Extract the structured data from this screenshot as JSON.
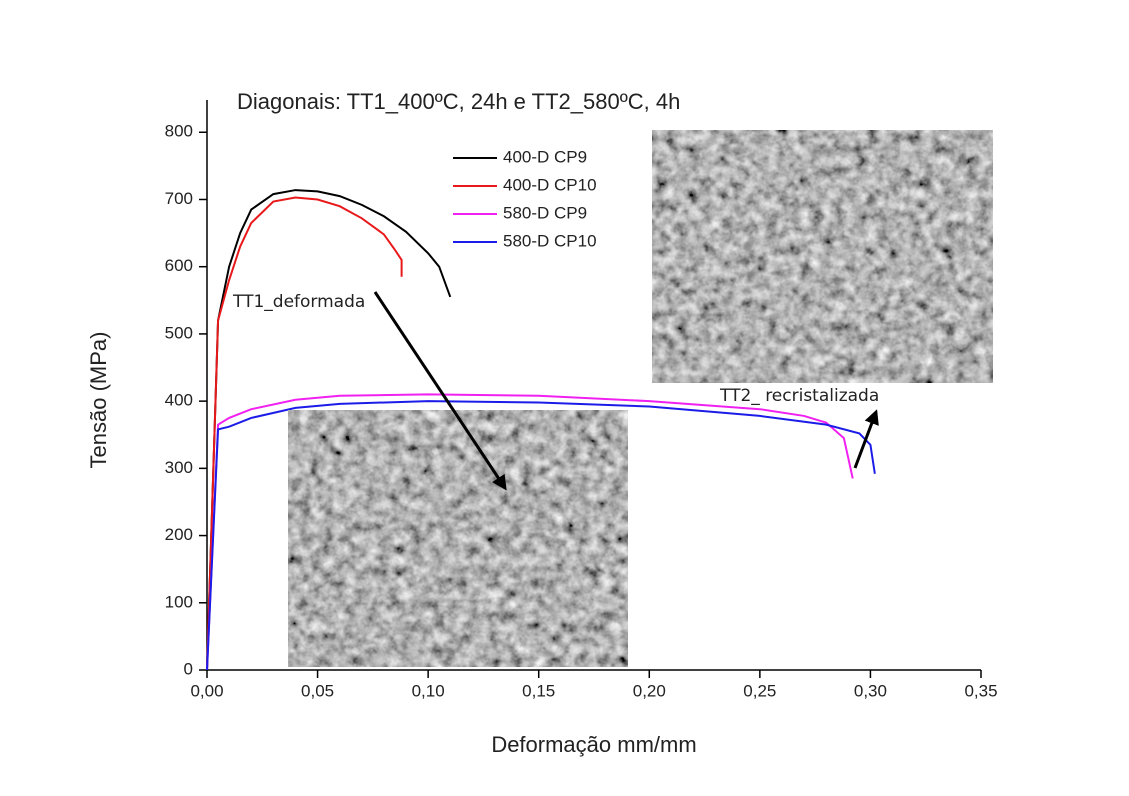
{
  "chart_data": {
    "type": "line",
    "title": "Diagonais: TT1_400ºC, 24h e TT2_580ºC, 4h",
    "xlabel": "Deformação mm/mm",
    "ylabel": "Tensão (MPa)",
    "annotations": [
      "TT1_deformada",
      "TT2_ recristalizada"
    ],
    "xlim": [
      0,
      0.35
    ],
    "ylim": [
      0,
      848
    ],
    "xticks": [
      {
        "value": 0,
        "label": "0,00"
      },
      {
        "value": 0.05,
        "label": "0,05"
      },
      {
        "value": 0.1,
        "label": "0,10"
      },
      {
        "value": 0.15,
        "label": "0,15"
      },
      {
        "value": 0.2,
        "label": "0,20"
      },
      {
        "value": 0.25,
        "label": "0,25"
      },
      {
        "value": 0.3,
        "label": "0,30"
      },
      {
        "value": 0.35,
        "label": "0,35"
      }
    ],
    "yticks": [
      0,
      100,
      200,
      300,
      400,
      500,
      600,
      700,
      800
    ],
    "series": [
      {
        "name": "400-D CP9",
        "color": "#000000",
        "x": [
          0,
          0.005,
          0.01,
          0.015,
          0.02,
          0.03,
          0.04,
          0.05,
          0.06,
          0.07,
          0.08,
          0.09,
          0.1,
          0.105,
          0.11
        ],
        "values": [
          0,
          520,
          600,
          650,
          685,
          708,
          714,
          712,
          705,
          692,
          675,
          652,
          620,
          600,
          555
        ]
      },
      {
        "name": "400-D CP10",
        "color": "#e8191b",
        "x": [
          0,
          0.005,
          0.01,
          0.015,
          0.02,
          0.03,
          0.04,
          0.05,
          0.06,
          0.07,
          0.08,
          0.085,
          0.088,
          0.088
        ],
        "values": [
          0,
          520,
          580,
          630,
          665,
          697,
          703,
          700,
          690,
          672,
          648,
          625,
          610,
          585
        ]
      },
      {
        "name": "580-D CP9",
        "color": "#f020f0",
        "x": [
          0,
          0.005,
          0.01,
          0.02,
          0.04,
          0.06,
          0.1,
          0.15,
          0.2,
          0.25,
          0.27,
          0.28,
          0.288,
          0.292
        ],
        "values": [
          0,
          365,
          375,
          388,
          402,
          408,
          410,
          408,
          400,
          388,
          378,
          368,
          345,
          285
        ]
      },
      {
        "name": "580-D CP10",
        "color": "#1c1ce8",
        "x": [
          0,
          0.005,
          0.01,
          0.02,
          0.04,
          0.06,
          0.1,
          0.15,
          0.2,
          0.25,
          0.28,
          0.295,
          0.3,
          0.302
        ],
        "values": [
          0,
          358,
          362,
          375,
          390,
          396,
          400,
          398,
          392,
          378,
          365,
          352,
          335,
          292
        ]
      }
    ]
  }
}
